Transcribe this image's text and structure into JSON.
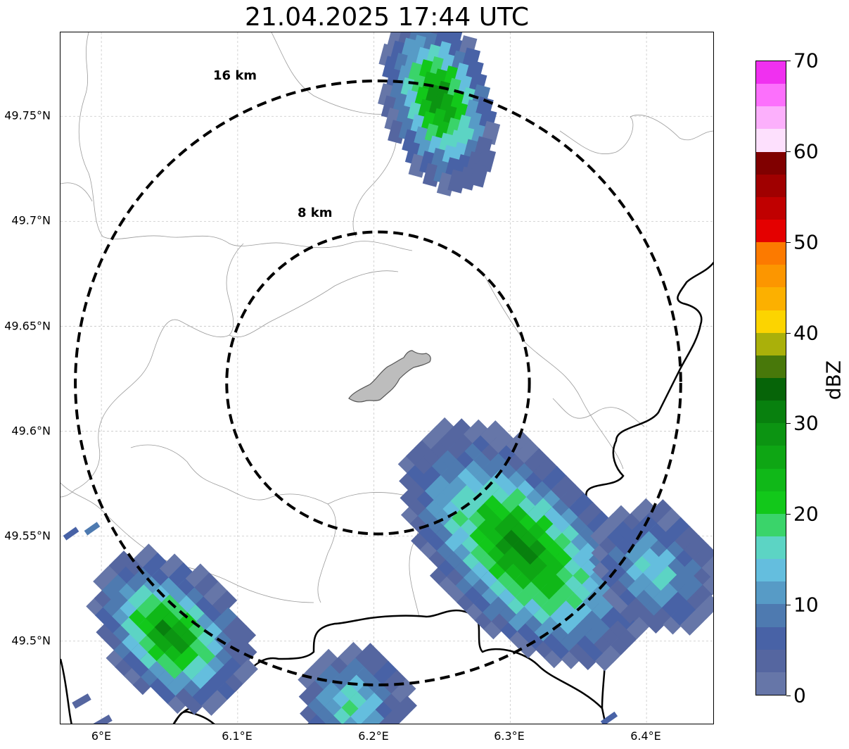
{
  "title": "21.04.2025 17:44 UTC",
  "map": {
    "lat_ticks": [
      "49.75°N",
      "49.7°N",
      "49.65°N",
      "49.6°N",
      "49.55°N",
      "49.5°N"
    ],
    "lon_ticks": [
      "6°E",
      "6.1°E",
      "6.2°E",
      "6.3°E",
      "6.4°E"
    ],
    "extent": {
      "lon_min": 5.97,
      "lon_max": 6.45,
      "lat_min": 49.46,
      "lat_max": 49.79
    },
    "radar_center": {
      "lon": 6.203,
      "lat": 49.623
    },
    "range_rings": [
      {
        "label": "8 km",
        "radius_km": 8
      },
      {
        "label": "16 km",
        "radius_km": 16
      }
    ],
    "gridlines": true,
    "colors": {
      "ring": "#000000",
      "border": "#000000",
      "commune_lines": "#9a9a9a",
      "city_fill": "#bdbdbd"
    }
  },
  "colorbar": {
    "label": "dBZ",
    "min": 0,
    "max": 70,
    "tick_labels": [
      "0",
      "10",
      "20",
      "30",
      "40",
      "50",
      "60",
      "70"
    ],
    "colors": [
      "#6676a8",
      "#5566a0",
      "#4862a6",
      "#4e7ab0",
      "#579bc6",
      "#64bede",
      "#5cd4c4",
      "#3ad46a",
      "#12c81a",
      "#10b818",
      "#0ea614",
      "#0c9412",
      "#08800e",
      "#066408",
      "#48780a",
      "#aab00a",
      "#fcd400",
      "#fcb000",
      "#fc9600",
      "#fc7a00",
      "#e40000",
      "#c00000",
      "#a00000",
      "#800000",
      "#fde0fd",
      "#fcb0fc",
      "#fc70fc",
      "#f030f0"
    ]
  }
}
